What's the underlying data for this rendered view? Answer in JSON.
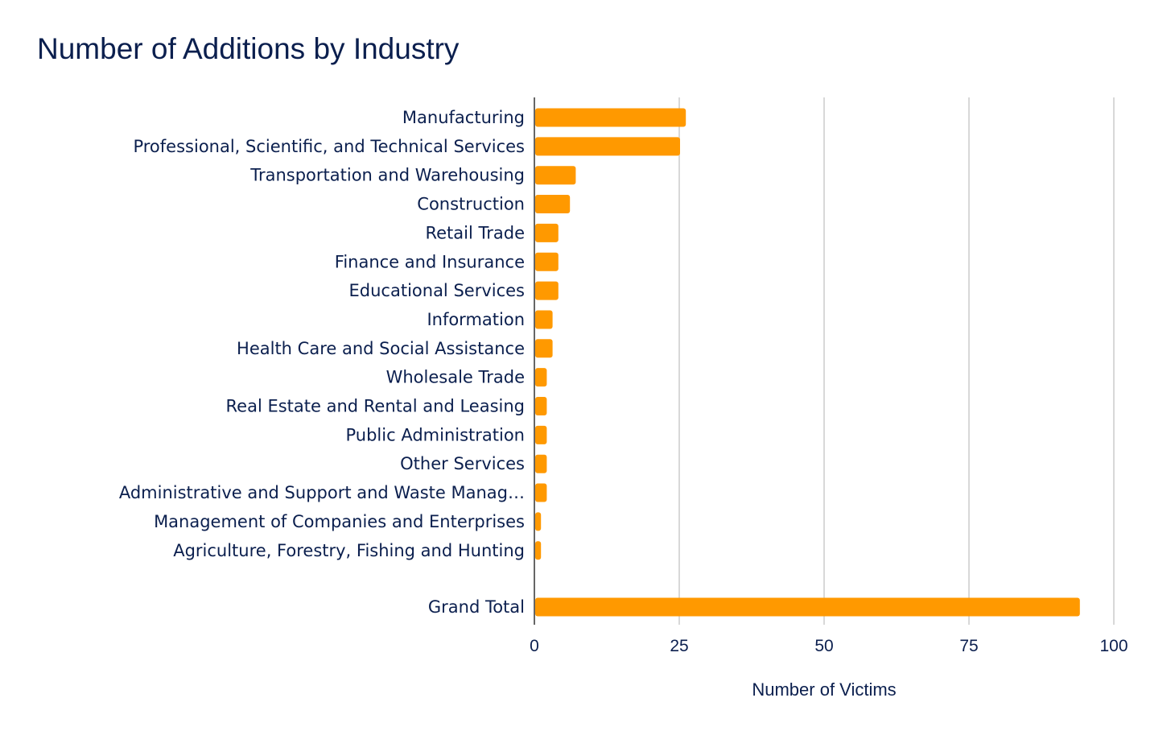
{
  "chart_data": {
    "type": "bar",
    "orientation": "horizontal",
    "title": "Number of Additions by Industry",
    "xlabel": "Number of Victims",
    "ylabel": "",
    "xlim": [
      0,
      100
    ],
    "xticks": [
      0,
      25,
      50,
      75,
      100
    ],
    "grid": true,
    "legend": "none",
    "bar_color": "#ff9900",
    "text_color": "#0b1f4e",
    "categories": [
      "Manufacturing",
      "Professional, Scientific, and Technical Services",
      "Transportation and Warehousing",
      "Construction",
      "Retail Trade",
      "Finance and Insurance",
      "Educational Services",
      "Information",
      "Health Care and Social Assistance",
      "Wholesale Trade",
      "Real Estate and Rental and Leasing",
      "Public Administration",
      "Other Services",
      "Administrative and Support and Waste Manag…",
      "Management of Companies and Enterprises",
      "Agriculture, Forestry, Fishing and Hunting",
      "Grand Total"
    ],
    "values": [
      26,
      25,
      7,
      6,
      4,
      4,
      4,
      3,
      3,
      2,
      2,
      2,
      2,
      2,
      1,
      1,
      94
    ]
  }
}
